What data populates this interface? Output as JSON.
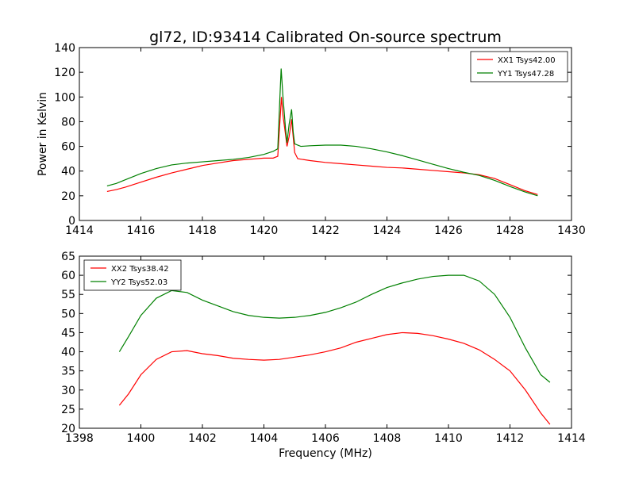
{
  "figure": {
    "title": "gl72, ID:93414 Calibrated On-source spectrum",
    "ylabel": "Power in Kelvin",
    "xlabel": "Frequency (MHz)"
  },
  "chart_data": [
    {
      "type": "line",
      "xlim": [
        1414,
        1430
      ],
      "ylim": [
        0,
        140
      ],
      "xticks": [
        1414,
        1416,
        1418,
        1420,
        1422,
        1424,
        1426,
        1428,
        1430
      ],
      "yticks": [
        0,
        20,
        40,
        60,
        80,
        100,
        120,
        140
      ],
      "legend_position": "top-right",
      "series": [
        {
          "name": "XX1 Tsys42.00",
          "color": "#ff0000",
          "points": [
            [
              1414.9,
              23.5
            ],
            [
              1415.2,
              25
            ],
            [
              1415.5,
              27
            ],
            [
              1416,
              31
            ],
            [
              1416.5,
              35
            ],
            [
              1417,
              38.5
            ],
            [
              1417.5,
              41.5
            ],
            [
              1418,
              44.5
            ],
            [
              1418.5,
              46.5
            ],
            [
              1419,
              48.5
            ],
            [
              1419.5,
              49.5
            ],
            [
              1420,
              50.5
            ],
            [
              1420.3,
              50.5
            ],
            [
              1420.45,
              52
            ],
            [
              1420.52,
              80
            ],
            [
              1420.57,
              100
            ],
            [
              1420.62,
              85
            ],
            [
              1420.7,
              70
            ],
            [
              1420.75,
              60
            ],
            [
              1420.82,
              68
            ],
            [
              1420.9,
              82
            ],
            [
              1420.95,
              68
            ],
            [
              1421.0,
              55
            ],
            [
              1421.1,
              50
            ],
            [
              1421.5,
              48.5
            ],
            [
              1422,
              47
            ],
            [
              1422.5,
              46
            ],
            [
              1423,
              45
            ],
            [
              1423.5,
              44
            ],
            [
              1424,
              43
            ],
            [
              1424.5,
              42.5
            ],
            [
              1425,
              41.5
            ],
            [
              1425.5,
              40.5
            ],
            [
              1426,
              39.5
            ],
            [
              1426.5,
              38.5
            ],
            [
              1427,
              37
            ],
            [
              1427.5,
              34
            ],
            [
              1428,
              29
            ],
            [
              1428.5,
              24
            ],
            [
              1428.9,
              21
            ]
          ]
        },
        {
          "name": "YY1 Tsys47.28",
          "color": "#008000",
          "points": [
            [
              1414.9,
              28
            ],
            [
              1415.2,
              30
            ],
            [
              1415.5,
              33
            ],
            [
              1416,
              38
            ],
            [
              1416.5,
              42
            ],
            [
              1417,
              45
            ],
            [
              1417.5,
              46.5
            ],
            [
              1418,
              47.5
            ],
            [
              1418.5,
              48.5
            ],
            [
              1419,
              49.5
            ],
            [
              1419.5,
              51
            ],
            [
              1420,
              53.5
            ],
            [
              1420.3,
              56
            ],
            [
              1420.45,
              58
            ],
            [
              1420.52,
              100
            ],
            [
              1420.56,
              123
            ],
            [
              1420.62,
              100
            ],
            [
              1420.7,
              75
            ],
            [
              1420.75,
              63
            ],
            [
              1420.82,
              78
            ],
            [
              1420.9,
              90
            ],
            [
              1420.95,
              72
            ],
            [
              1421.0,
              62
            ],
            [
              1421.2,
              60
            ],
            [
              1421.5,
              60.5
            ],
            [
              1422,
              61
            ],
            [
              1422.5,
              61
            ],
            [
              1423,
              60
            ],
            [
              1423.5,
              58
            ],
            [
              1424,
              55.5
            ],
            [
              1424.5,
              52.5
            ],
            [
              1425,
              49
            ],
            [
              1425.5,
              45.5
            ],
            [
              1426,
              42
            ],
            [
              1426.5,
              39
            ],
            [
              1427,
              36.5
            ],
            [
              1427.5,
              32.5
            ],
            [
              1428,
              27.5
            ],
            [
              1428.5,
              23
            ],
            [
              1428.9,
              20
            ]
          ]
        }
      ]
    },
    {
      "type": "line",
      "xlim": [
        1398,
        1414
      ],
      "ylim": [
        20,
        65
      ],
      "xticks": [
        1398,
        1400,
        1402,
        1404,
        1406,
        1408,
        1410,
        1412,
        1414
      ],
      "yticks": [
        20,
        25,
        30,
        35,
        40,
        45,
        50,
        55,
        60,
        65
      ],
      "legend_position": "top-left",
      "series": [
        {
          "name": "XX2 Tsys38.42",
          "color": "#ff0000",
          "points": [
            [
              1399.3,
              26
            ],
            [
              1399.6,
              29
            ],
            [
              1400,
              34
            ],
            [
              1400.5,
              38
            ],
            [
              1401,
              40
            ],
            [
              1401.5,
              40.3
            ],
            [
              1402,
              39.5
            ],
            [
              1402.5,
              39
            ],
            [
              1403,
              38.3
            ],
            [
              1403.5,
              38
            ],
            [
              1404,
              37.8
            ],
            [
              1404.5,
              38
            ],
            [
              1405,
              38.6
            ],
            [
              1405.5,
              39.2
            ],
            [
              1406,
              40
            ],
            [
              1406.5,
              41
            ],
            [
              1407,
              42.5
            ],
            [
              1407.5,
              43.5
            ],
            [
              1408,
              44.5
            ],
            [
              1408.5,
              45
            ],
            [
              1409,
              44.8
            ],
            [
              1409.5,
              44.2
            ],
            [
              1410,
              43.3
            ],
            [
              1410.5,
              42.2
            ],
            [
              1411,
              40.5
            ],
            [
              1411.5,
              38
            ],
            [
              1412,
              35
            ],
            [
              1412.5,
              30
            ],
            [
              1413,
              24
            ],
            [
              1413.3,
              21
            ]
          ]
        },
        {
          "name": "YY2 Tsys52.03",
          "color": "#008000",
          "points": [
            [
              1399.3,
              40
            ],
            [
              1399.6,
              44
            ],
            [
              1400,
              49.5
            ],
            [
              1400.5,
              54
            ],
            [
              1401,
              56
            ],
            [
              1401.5,
              55.5
            ],
            [
              1402,
              53.5
            ],
            [
              1402.5,
              52
            ],
            [
              1403,
              50.5
            ],
            [
              1403.5,
              49.5
            ],
            [
              1404,
              49
            ],
            [
              1404.5,
              48.8
            ],
            [
              1405,
              49
            ],
            [
              1405.5,
              49.5
            ],
            [
              1406,
              50.3
            ],
            [
              1406.5,
              51.5
            ],
            [
              1407,
              53
            ],
            [
              1407.5,
              55
            ],
            [
              1408,
              56.8
            ],
            [
              1408.5,
              58
            ],
            [
              1409,
              59
            ],
            [
              1409.5,
              59.7
            ],
            [
              1410,
              60
            ],
            [
              1410.5,
              60
            ],
            [
              1411,
              58.5
            ],
            [
              1411.5,
              55
            ],
            [
              1412,
              49
            ],
            [
              1412.5,
              41
            ],
            [
              1413,
              34
            ],
            [
              1413.3,
              32
            ]
          ]
        }
      ]
    }
  ]
}
